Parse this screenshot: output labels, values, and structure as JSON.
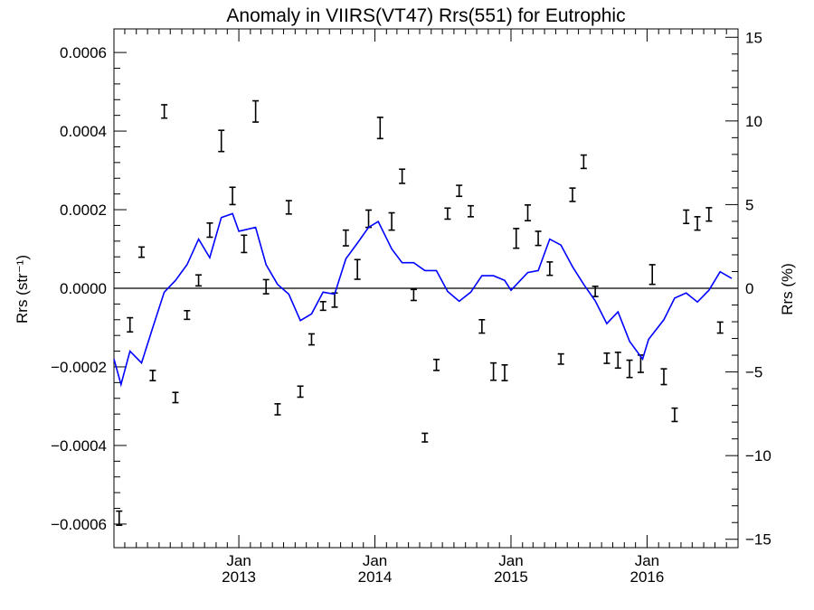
{
  "chart_data": {
    "type": "line",
    "title": "Anomaly in VIIRS(VT47) Rrs(551) for Eutrophic",
    "ylabel_left": "Rrs (str⁻¹)",
    "ylabel_right": "Rrs (%)",
    "xlabel": "",
    "ylim_left": [
      -0.00066,
      0.00066
    ],
    "ylim_right": [
      -15.5,
      15.5
    ],
    "xlim": [
      "2012-02-01",
      "2016-09-01"
    ],
    "x_ticks": [
      {
        "x": "2013-01-01",
        "line1": "Jan",
        "line2": "2013"
      },
      {
        "x": "2014-01-01",
        "line1": "Jan",
        "line2": "2014"
      },
      {
        "x": "2015-01-01",
        "line1": "Jan",
        "line2": "2015"
      },
      {
        "x": "2016-01-01",
        "line1": "Jan",
        "line2": "2016"
      }
    ],
    "y_ticks_left": [
      {
        "v": -0.0006,
        "label": "−0.0006"
      },
      {
        "v": -0.0004,
        "label": "−0.0004"
      },
      {
        "v": -0.0002,
        "label": "−0.0002"
      },
      {
        "v": 0.0,
        "label": "0.0000"
      },
      {
        "v": 0.0002,
        "label": "0.0002"
      },
      {
        "v": 0.0004,
        "label": "0.0004"
      },
      {
        "v": 0.0006,
        "label": "0.0006"
      }
    ],
    "y_ticks_right": [
      {
        "v": -15,
        "label": "−15"
      },
      {
        "v": -10,
        "label": "−10"
      },
      {
        "v": -5,
        "label": "−5"
      },
      {
        "v": 0,
        "label": "0"
      },
      {
        "v": 5,
        "label": "5"
      },
      {
        "v": 10,
        "label": "10"
      },
      {
        "v": 15,
        "label": "15"
      }
    ],
    "zero_line": true,
    "colors": {
      "points": "#000000",
      "line": "#0000ff",
      "zero": "#000000"
    },
    "series": [
      {
        "style": "error-bars",
        "axis": "left",
        "points": [
          {
            "x": "2012-02-15",
            "y": -0.000585,
            "err": 1.8e-05
          },
          {
            "x": "2012-03-15",
            "y": -9.3e-05,
            "err": 1.8e-05
          },
          {
            "x": "2012-04-15",
            "y": 9.2e-05,
            "err": 1.3e-05
          },
          {
            "x": "2012-05-15",
            "y": -0.000222,
            "err": 1.3e-05
          },
          {
            "x": "2012-06-15",
            "y": 0.00045,
            "err": 1.7e-05
          },
          {
            "x": "2012-07-15",
            "y": -0.000278,
            "err": 1.3e-05
          },
          {
            "x": "2012-08-15",
            "y": -6.8e-05,
            "err": 1.1e-05
          },
          {
            "x": "2012-09-15",
            "y": 2e-05,
            "err": 1.4e-05
          },
          {
            "x": "2012-10-15",
            "y": 0.000148,
            "err": 1.8e-05
          },
          {
            "x": "2012-11-15",
            "y": 0.000375,
            "err": 2.7e-05
          },
          {
            "x": "2012-12-15",
            "y": 0.000235,
            "err": 2.2e-05
          },
          {
            "x": "2013-01-15",
            "y": 0.000113,
            "err": 2.2e-05
          },
          {
            "x": "2013-02-15",
            "y": 0.00045,
            "err": 2.7e-05
          },
          {
            "x": "2013-03-15",
            "y": 4e-06,
            "err": 1.8e-05
          },
          {
            "x": "2013-04-15",
            "y": -0.000308,
            "err": 1.4e-05
          },
          {
            "x": "2013-05-15",
            "y": 0.000206,
            "err": 1.7e-05
          },
          {
            "x": "2013-06-15",
            "y": -0.000263,
            "err": 1.4e-05
          },
          {
            "x": "2013-07-15",
            "y": -0.00013,
            "err": 1.4e-05
          },
          {
            "x": "2013-08-15",
            "y": -4.5e-05,
            "err": 1.1e-05
          },
          {
            "x": "2013-09-15",
            "y": -3e-05,
            "err": 1.8e-05
          },
          {
            "x": "2013-10-15",
            "y": 0.000128,
            "err": 2e-05
          },
          {
            "x": "2013-11-15",
            "y": 4.8e-05,
            "err": 2.5e-05
          },
          {
            "x": "2013-12-15",
            "y": 0.000177,
            "err": 2.2e-05
          },
          {
            "x": "2014-01-15",
            "y": 0.000408,
            "err": 2.7e-05
          },
          {
            "x": "2014-02-15",
            "y": 0.00017,
            "err": 2.2e-05
          },
          {
            "x": "2014-03-15",
            "y": 0.000285,
            "err": 1.8e-05
          },
          {
            "x": "2014-04-15",
            "y": -1.7e-05,
            "err": 1.4e-05
          },
          {
            "x": "2014-05-15",
            "y": -0.00038,
            "err": 1.1e-05
          },
          {
            "x": "2014-06-15",
            "y": -0.000195,
            "err": 1.4e-05
          },
          {
            "x": "2014-07-15",
            "y": 0.00019,
            "err": 1.4e-05
          },
          {
            "x": "2014-08-15",
            "y": 0.000248,
            "err": 1.4e-05
          },
          {
            "x": "2014-09-15",
            "y": 0.000196,
            "err": 1.4e-05
          },
          {
            "x": "2014-10-15",
            "y": -9.7e-05,
            "err": 1.7e-05
          },
          {
            "x": "2014-11-15",
            "y": -0.000212,
            "err": 2.2e-05
          },
          {
            "x": "2014-12-15",
            "y": -0.000215,
            "err": 2e-05
          },
          {
            "x": "2015-01-15",
            "y": 0.000127,
            "err": 2.5e-05
          },
          {
            "x": "2015-02-15",
            "y": 0.000192,
            "err": 2e-05
          },
          {
            "x": "2015-03-15",
            "y": 0.000127,
            "err": 1.8e-05
          },
          {
            "x": "2015-04-15",
            "y": 5e-05,
            "err": 1.7e-05
          },
          {
            "x": "2015-05-15",
            "y": -0.00018,
            "err": 1.3e-05
          },
          {
            "x": "2015-06-15",
            "y": 0.000238,
            "err": 1.7e-05
          },
          {
            "x": "2015-07-15",
            "y": 0.000322,
            "err": 1.7e-05
          },
          {
            "x": "2015-08-15",
            "y": -8e-06,
            "err": 1.3e-05
          },
          {
            "x": "2015-09-15",
            "y": -0.000178,
            "err": 1.3e-05
          },
          {
            "x": "2015-10-15",
            "y": -0.000183,
            "err": 2e-05
          },
          {
            "x": "2015-11-15",
            "y": -0.000205,
            "err": 2.2e-05
          },
          {
            "x": "2015-12-15",
            "y": -0.000192,
            "err": 2.2e-05
          },
          {
            "x": "2016-01-15",
            "y": 3.5e-05,
            "err": 2.5e-05
          },
          {
            "x": "2016-02-15",
            "y": -0.000225,
            "err": 2e-05
          },
          {
            "x": "2016-03-15",
            "y": -0.000322,
            "err": 1.7e-05
          },
          {
            "x": "2016-04-15",
            "y": 0.000182,
            "err": 1.7e-05
          },
          {
            "x": "2016-05-15",
            "y": 0.000165,
            "err": 1.7e-05
          },
          {
            "x": "2016-06-15",
            "y": 0.000188,
            "err": 1.7e-05
          },
          {
            "x": "2016-07-15",
            "y": -0.0001,
            "err": 1.4e-05
          }
        ]
      },
      {
        "style": "line",
        "axis": "left",
        "points": [
          {
            "x": "2012-02-01",
            "y": -0.00018
          },
          {
            "x": "2012-02-20",
            "y": -0.000245
          },
          {
            "x": "2012-03-15",
            "y": -0.00016
          },
          {
            "x": "2012-04-15",
            "y": -0.00019
          },
          {
            "x": "2012-05-15",
            "y": -0.0001
          },
          {
            "x": "2012-06-15",
            "y": -1e-05
          },
          {
            "x": "2012-07-15",
            "y": 2e-05
          },
          {
            "x": "2012-08-15",
            "y": 6e-05
          },
          {
            "x": "2012-09-15",
            "y": 0.000125
          },
          {
            "x": "2012-10-15",
            "y": 7.8e-05
          },
          {
            "x": "2012-11-15",
            "y": 0.00018
          },
          {
            "x": "2012-12-15",
            "y": 0.00019
          },
          {
            "x": "2013-01-01",
            "y": 0.000145
          },
          {
            "x": "2013-02-15",
            "y": 0.000155
          },
          {
            "x": "2013-03-15",
            "y": 6e-05
          },
          {
            "x": "2013-04-15",
            "y": 1e-05
          },
          {
            "x": "2013-05-15",
            "y": -1.5e-05
          },
          {
            "x": "2013-06-15",
            "y": -8.2e-05
          },
          {
            "x": "2013-07-15",
            "y": -6.5e-05
          },
          {
            "x": "2013-08-15",
            "y": -1e-05
          },
          {
            "x": "2013-09-15",
            "y": -1.5e-05
          },
          {
            "x": "2013-10-15",
            "y": 7.5e-05
          },
          {
            "x": "2013-11-15",
            "y": 0.000115
          },
          {
            "x": "2013-12-15",
            "y": 0.000155
          },
          {
            "x": "2014-01-10",
            "y": 0.00017
          },
          {
            "x": "2014-02-15",
            "y": 0.0001
          },
          {
            "x": "2014-03-15",
            "y": 6.5e-05
          },
          {
            "x": "2014-04-15",
            "y": 6.5e-05
          },
          {
            "x": "2014-05-15",
            "y": 4.5e-05
          },
          {
            "x": "2014-06-15",
            "y": 4.5e-05
          },
          {
            "x": "2014-07-15",
            "y": -8e-06
          },
          {
            "x": "2014-08-15",
            "y": -3.3e-05
          },
          {
            "x": "2014-09-15",
            "y": -1e-05
          },
          {
            "x": "2014-10-15",
            "y": 3.2e-05
          },
          {
            "x": "2014-11-15",
            "y": 3.2e-05
          },
          {
            "x": "2014-12-15",
            "y": 2e-05
          },
          {
            "x": "2015-01-01",
            "y": -5e-06
          },
          {
            "x": "2015-02-15",
            "y": 4e-05
          },
          {
            "x": "2015-03-15",
            "y": 4.5e-05
          },
          {
            "x": "2015-04-15",
            "y": 0.000125
          },
          {
            "x": "2015-05-15",
            "y": 0.00011
          },
          {
            "x": "2015-06-15",
            "y": 5.5e-05
          },
          {
            "x": "2015-07-15",
            "y": 1e-05
          },
          {
            "x": "2015-08-15",
            "y": -3.2e-05
          },
          {
            "x": "2015-09-15",
            "y": -9e-05
          },
          {
            "x": "2015-10-15",
            "y": -6e-05
          },
          {
            "x": "2015-11-15",
            "y": -0.000135
          },
          {
            "x": "2015-12-20",
            "y": -0.00018
          },
          {
            "x": "2016-01-05",
            "y": -0.00013
          },
          {
            "x": "2016-02-15",
            "y": -8e-05
          },
          {
            "x": "2016-03-15",
            "y": -2.5e-05
          },
          {
            "x": "2016-04-15",
            "y": -1.2e-05
          },
          {
            "x": "2016-05-15",
            "y": -3.5e-05
          },
          {
            "x": "2016-06-15",
            "y": -5e-06
          },
          {
            "x": "2016-07-15",
            "y": 4.2e-05
          },
          {
            "x": "2016-08-15",
            "y": 2.5e-05
          }
        ]
      }
    ]
  }
}
